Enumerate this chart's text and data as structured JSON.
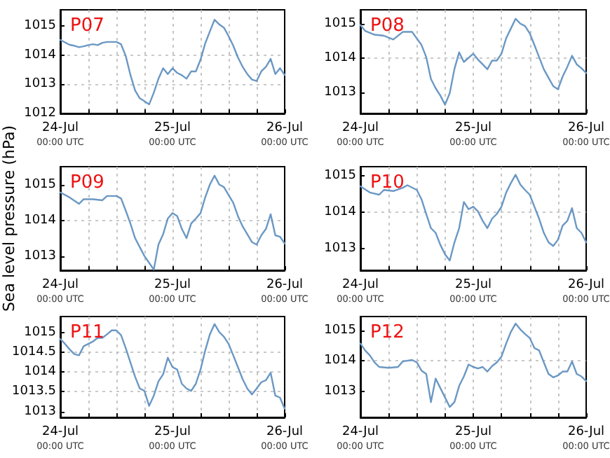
{
  "chart_data": [
    {
      "type": "line",
      "title": "P07",
      "xlim": [
        "--07-24T00:00",
        "--07-26T00:00"
      ],
      "xticks": [
        {
          "value": "--07-24T00:00",
          "label": "24-Jul\n00:00 UTC"
        },
        {
          "value": "--07-24T06:00",
          "label": null
        },
        {
          "value": "--07-24T12:00",
          "label": null
        },
        {
          "value": "--07-24T18:00",
          "label": null
        },
        {
          "value": "--07-25T00:00",
          "label": "25-Jul\n00:00 UTC"
        },
        {
          "value": "--07-25T06:00",
          "label": null
        },
        {
          "value": "--07-25T12:00",
          "label": null
        },
        {
          "value": "--07-25T18:00",
          "label": null
        },
        {
          "value": "--07-26T00:00",
          "label": "26-Jul\n00:00 UTC"
        }
      ],
      "ylim": [
        1012,
        1015.55
      ],
      "yticks": [
        1012,
        1013,
        1014,
        1015
      ],
      "grid": true,
      "marker": "none",
      "line_style": "solid",
      "series": [
        {
          "color": "#6b98c4",
          "x": [
            "--07-24T00:00",
            "--07-24T02:00",
            "--07-24T03:00",
            "--07-24T04:00",
            "--07-24T05:00",
            "--07-24T06:00",
            "--07-24T07:00",
            "--07-24T08:00",
            "--07-24T09:00",
            "--07-24T10:00",
            "--07-24T12:00",
            "--07-24T13:00",
            "--07-24T14:00",
            "--07-24T15:00",
            "--07-24T16:00",
            "--07-24T17:00",
            "--07-24T18:00",
            "--07-24T19:00",
            "--07-24T20:00",
            "--07-24T21:00",
            "--07-24T22:00",
            "--07-24T23:00",
            "--07-25T00:00",
            "--07-25T01:00",
            "--07-25T02:00",
            "--07-25T03:00",
            "--07-25T04:00",
            "--07-25T05:00",
            "--07-25T06:00",
            "--07-25T07:00",
            "--07-25T08:00",
            "--07-25T09:00",
            "--07-25T10:00",
            "--07-25T11:00",
            "--07-25T12:00",
            "--07-25T13:00",
            "--07-25T14:00",
            "--07-25T15:00",
            "--07-25T16:00",
            "--07-25T17:00",
            "--07-25T18:00",
            "--07-25T19:00",
            "--07-25T20:00",
            "--07-25T21:00",
            "--07-25T22:00",
            "--07-25T23:00",
            "--07-26T00:00"
          ],
          "values": [
            1014.52,
            1014.35,
            1014.32,
            1014.27,
            1014.3,
            1014.34,
            1014.37,
            1014.34,
            1014.42,
            1014.45,
            1014.45,
            1014.37,
            1013.97,
            1013.32,
            1012.79,
            1012.52,
            1012.42,
            1012.31,
            1012.71,
            1013.19,
            1013.55,
            1013.35,
            1013.55,
            1013.39,
            1013.31,
            1013.19,
            1013.44,
            1013.44,
            1013.84,
            1014.4,
            1014.81,
            1015.21,
            1015.05,
            1014.94,
            1014.65,
            1014.32,
            1013.92,
            1013.6,
            1013.35,
            1013.16,
            1013.11,
            1013.44,
            1013.6,
            1013.87,
            1013.35,
            1013.55,
            1013.32
          ]
        }
      ]
    },
    {
      "type": "line",
      "title": "P08",
      "xlim": [
        "--07-24T00:00",
        "--07-26T00:00"
      ],
      "xticks": [
        {
          "value": "--07-24T00:00",
          "label": "24-Jul\n00:00 UTC"
        },
        {
          "value": "--07-24T06:00",
          "label": null
        },
        {
          "value": "--07-24T12:00",
          "label": null
        },
        {
          "value": "--07-24T18:00",
          "label": null
        },
        {
          "value": "--07-25T00:00",
          "label": "25-Jul\n00:00 UTC"
        },
        {
          "value": "--07-25T06:00",
          "label": null
        },
        {
          "value": "--07-25T12:00",
          "label": null
        },
        {
          "value": "--07-25T18:00",
          "label": null
        },
        {
          "value": "--07-26T00:00",
          "label": "26-Jul\n00:00 UTC"
        }
      ],
      "ylim": [
        1012.4,
        1015.4
      ],
      "yticks": [
        1013,
        1014,
        1015
      ],
      "grid": true,
      "marker": "none",
      "line_style": "solid",
      "series": [
        {
          "color": "#6b98c4",
          "x": [
            "--07-24T00:00",
            "--07-24T01:00",
            "--07-24T03:00",
            "--07-24T05:00",
            "--07-24T07:00",
            "--07-24T09:00",
            "--07-24T11:00",
            "--07-24T13:00",
            "--07-24T14:00",
            "--07-24T15:00",
            "--07-24T16:00",
            "--07-24T17:00",
            "--07-24T18:00",
            "--07-24T19:00",
            "--07-24T20:00",
            "--07-24T21:00",
            "--07-24T22:00",
            "--07-25T00:00",
            "--07-25T01:00",
            "--07-25T02:00",
            "--07-25T03:00",
            "--07-25T04:00",
            "--07-25T05:00",
            "--07-25T06:00",
            "--07-25T07:00",
            "--07-25T08:00",
            "--07-25T09:00",
            "--07-25T10:00",
            "--07-25T11:00",
            "--07-25T12:00",
            "--07-25T13:00",
            "--07-25T14:00",
            "--07-25T15:00",
            "--07-25T16:00",
            "--07-25T17:00",
            "--07-25T18:00",
            "--07-25T19:00",
            "--07-25T20:00",
            "--07-25T21:00",
            "--07-25T22:00",
            "--07-25T23:00",
            "--07-26T00:00"
          ],
          "values": [
            1014.96,
            1014.79,
            1014.68,
            1014.65,
            1014.54,
            1014.76,
            1014.76,
            1014.38,
            1014.03,
            1013.4,
            1013.13,
            1012.92,
            1012.65,
            1012.99,
            1013.69,
            1014.17,
            1013.89,
            1014.13,
            1013.96,
            1013.82,
            1013.68,
            1013.93,
            1013.93,
            1014.13,
            1014.58,
            1014.86,
            1015.14,
            1015,
            1014.93,
            1014.72,
            1014.38,
            1014.03,
            1013.68,
            1013.43,
            1013.19,
            1013.1,
            1013.47,
            1013.75,
            1014.07,
            1013.82,
            1013.71,
            1013.57
          ]
        }
      ]
    },
    {
      "type": "line",
      "title": "P09",
      "ylabel": "Sea level pressure (hPa)",
      "xlim": [
        "--07-24T00:00",
        "--07-26T00:00"
      ],
      "xticks": [
        {
          "value": "--07-24T00:00",
          "label": "24-Jul\n00:00 UTC"
        },
        {
          "value": "--07-24T06:00",
          "label": null
        },
        {
          "value": "--07-24T12:00",
          "label": null
        },
        {
          "value": "--07-24T18:00",
          "label": null
        },
        {
          "value": "--07-25T00:00",
          "label": "25-Jul\n00:00 UTC"
        },
        {
          "value": "--07-25T06:00",
          "label": null
        },
        {
          "value": "--07-25T12:00",
          "label": null
        },
        {
          "value": "--07-25T18:00",
          "label": null
        },
        {
          "value": "--07-26T00:00",
          "label": "26-Jul\n00:00 UTC"
        }
      ],
      "ylim": [
        1012.6,
        1015.5
      ],
      "yticks": [
        1013,
        1014,
        1015
      ],
      "grid": true,
      "marker": "none",
      "line_style": "solid",
      "series": [
        {
          "color": "#6b98c4",
          "x": [
            "--07-24T00:00",
            "--07-24T02:00",
            "--07-24T04:00",
            "--07-24T05:00",
            "--07-24T07:00",
            "--07-24T09:00",
            "--07-24T10:00",
            "--07-24T12:00",
            "--07-24T13:00",
            "--07-24T14:00",
            "--07-24T15:00",
            "--07-24T16:00",
            "--07-24T17:00",
            "--07-24T18:00",
            "--07-24T19:00",
            "--07-24T20:00",
            "--07-24T21:00",
            "--07-24T22:00",
            "--07-24T23:00",
            "--07-25T00:00",
            "--07-25T01:00",
            "--07-25T02:00",
            "--07-25T03:00",
            "--07-25T04:00",
            "--07-25T05:00",
            "--07-25T06:00",
            "--07-25T07:00",
            "--07-25T08:00",
            "--07-25T09:00",
            "--07-25T10:00",
            "--07-25T11:00",
            "--07-25T12:00",
            "--07-25T13:00",
            "--07-25T14:00",
            "--07-25T15:00",
            "--07-25T16:00",
            "--07-25T17:00",
            "--07-25T18:00",
            "--07-25T19:00",
            "--07-25T20:00",
            "--07-25T21:00",
            "--07-25T22:00",
            "--07-25T23:00",
            "--07-26T00:00"
          ],
          "values": [
            1014.78,
            1014.64,
            1014.46,
            1014.59,
            1014.59,
            1014.56,
            1014.68,
            1014.68,
            1014.61,
            1014.27,
            1013.91,
            1013.5,
            1013.25,
            1013,
            1012.81,
            1012.62,
            1013.32,
            1013.61,
            1014.05,
            1014.2,
            1014.12,
            1013.76,
            1013.5,
            1013.91,
            1014.05,
            1014.2,
            1014.64,
            1015,
            1015.25,
            1015,
            1014.93,
            1014.71,
            1014.49,
            1014.12,
            1013.83,
            1013.61,
            1013.39,
            1013.32,
            1013.58,
            1013.76,
            1014.17,
            1013.58,
            1013.54,
            1013.35
          ]
        }
      ]
    },
    {
      "type": "line",
      "title": "P10",
      "xlim": [
        "--07-24T00:00",
        "--07-26T00:00"
      ],
      "xticks": [
        {
          "value": "--07-24T00:00",
          "label": "24-Jul\n00:00 UTC"
        },
        {
          "value": "--07-24T06:00",
          "label": null
        },
        {
          "value": "--07-24T12:00",
          "label": null
        },
        {
          "value": "--07-24T18:00",
          "label": null
        },
        {
          "value": "--07-25T00:00",
          "label": "25-Jul\n00:00 UTC"
        },
        {
          "value": "--07-25T06:00",
          "label": null
        },
        {
          "value": "--07-25T12:00",
          "label": null
        },
        {
          "value": "--07-25T18:00",
          "label": null
        },
        {
          "value": "--07-26T00:00",
          "label": "26-Jul\n00:00 UTC"
        }
      ],
      "ylim": [
        1012.4,
        1015.25
      ],
      "yticks": [
        1013,
        1014,
        1015
      ],
      "grid": true,
      "marker": "none",
      "line_style": "solid",
      "series": [
        {
          "color": "#6b98c4",
          "x": [
            "--07-24T00:00",
            "--07-24T02:00",
            "--07-24T04:00",
            "--07-24T05:00",
            "--07-24T07:00",
            "--07-24T09:00",
            "--07-24T10:00",
            "--07-24T12:00",
            "--07-24T13:00",
            "--07-24T14:00",
            "--07-24T15:00",
            "--07-24T16:00",
            "--07-24T17:00",
            "--07-24T18:00",
            "--07-24T19:00",
            "--07-24T20:00",
            "--07-24T21:00",
            "--07-24T22:00",
            "--07-24T23:00",
            "--07-25T00:00",
            "--07-25T01:00",
            "--07-25T02:00",
            "--07-25T03:00",
            "--07-25T04:00",
            "--07-25T05:00",
            "--07-25T06:00",
            "--07-25T07:00",
            "--07-25T08:00",
            "--07-25T09:00",
            "--07-25T10:00",
            "--07-25T11:00",
            "--07-25T12:00",
            "--07-25T13:00",
            "--07-25T14:00",
            "--07-25T15:00",
            "--07-25T16:00",
            "--07-25T17:00",
            "--07-25T18:00",
            "--07-25T19:00",
            "--07-25T20:00",
            "--07-25T21:00",
            "--07-25T22:00",
            "--07-25T23:00",
            "--07-26T00:00"
          ],
          "values": [
            1014.71,
            1014.54,
            1014.48,
            1014.61,
            1014.58,
            1014.67,
            1014.74,
            1014.61,
            1014.35,
            1013.95,
            1013.56,
            1013.43,
            1013.1,
            1012.84,
            1012.67,
            1013.17,
            1013.56,
            1014.28,
            1014.08,
            1014.15,
            1014.02,
            1013.76,
            1013.56,
            1013.82,
            1013.95,
            1014.15,
            1014.54,
            1014.8,
            1015.03,
            1014.76,
            1014.61,
            1014.48,
            1014.15,
            1013.82,
            1013.43,
            1013.17,
            1013.07,
            1013.24,
            1013.63,
            1013.76,
            1014.11,
            1013.56,
            1013.43,
            1013.17
          ]
        }
      ]
    },
    {
      "type": "line",
      "title": "P11",
      "xlim": [
        "--07-24T00:00",
        "--07-26T00:00"
      ],
      "xticks": [
        {
          "value": "--07-24T00:00",
          "label": "24-Jul\n00:00 UTC"
        },
        {
          "value": "--07-24T06:00",
          "label": null
        },
        {
          "value": "--07-24T12:00",
          "label": null
        },
        {
          "value": "--07-24T18:00",
          "label": null
        },
        {
          "value": "--07-25T00:00",
          "label": "25-Jul\n00:00 UTC"
        },
        {
          "value": "--07-25T06:00",
          "label": null
        },
        {
          "value": "--07-25T12:00",
          "label": null
        },
        {
          "value": "--07-25T18:00",
          "label": null
        },
        {
          "value": "--07-26T00:00",
          "label": "26-Jul\n00:00 UTC"
        }
      ],
      "ylim": [
        1012.85,
        1015.4
      ],
      "yticks": [
        1013,
        1013.5,
        1014,
        1014.5,
        1015
      ],
      "grid": true,
      "marker": "none",
      "line_style": "solid",
      "series": [
        {
          "color": "#6b98c4",
          "x": [
            "--07-24T00:00",
            "--07-24T01:00",
            "--07-24T02:00",
            "--07-24T03:00",
            "--07-24T04:00",
            "--07-24T05:00",
            "--07-24T07:00",
            "--07-24T08:00",
            "--07-24T09:00",
            "--07-24T10:00",
            "--07-24T11:00",
            "--07-24T12:00",
            "--07-24T13:00",
            "--07-24T14:00",
            "--07-24T15:00",
            "--07-24T16:00",
            "--07-24T17:00",
            "--07-24T18:00",
            "--07-24T19:00",
            "--07-24T20:00",
            "--07-24T21:00",
            "--07-24T22:00",
            "--07-24T23:00",
            "--07-25T00:00",
            "--07-25T01:00",
            "--07-25T02:00",
            "--07-25T03:00",
            "--07-25T04:00",
            "--07-25T05:00",
            "--07-25T06:00",
            "--07-25T07:00",
            "--07-25T08:00",
            "--07-25T09:00",
            "--07-25T10:00",
            "--07-25T11:00",
            "--07-25T12:00",
            "--07-25T13:00",
            "--07-25T14:00",
            "--07-25T15:00",
            "--07-25T16:00",
            "--07-25T17:00",
            "--07-25T18:00",
            "--07-25T19:00",
            "--07-25T20:00",
            "--07-25T21:00",
            "--07-25T22:00",
            "--07-25T23:00",
            "--07-26T00:00"
          ],
          "values": [
            1014.83,
            1014.71,
            1014.57,
            1014.45,
            1014.42,
            1014.65,
            1014.77,
            1014.86,
            1014.86,
            1014.95,
            1015.05,
            1015.05,
            1014.93,
            1014.6,
            1014.24,
            1013.88,
            1013.58,
            1013.52,
            1013.14,
            1013.4,
            1013.76,
            1013.94,
            1014.36,
            1014.12,
            1014.06,
            1013.7,
            1013.58,
            1013.52,
            1013.7,
            1014.06,
            1014.54,
            1014.95,
            1015.21,
            1015.01,
            1014.89,
            1014.71,
            1014.42,
            1014.12,
            1013.82,
            1013.58,
            1013.43,
            1013.58,
            1013.74,
            1013.79,
            1013.98,
            1013.4,
            1013.35,
            1013.07
          ]
        }
      ]
    },
    {
      "type": "line",
      "title": "P12",
      "xlim": [
        "--07-24T00:00",
        "--07-26T00:00"
      ],
      "xticks": [
        {
          "value": "--07-24T00:00",
          "label": "24-Jul\n00:00 UTC"
        },
        {
          "value": "--07-24T06:00",
          "label": null
        },
        {
          "value": "--07-24T12:00",
          "label": null
        },
        {
          "value": "--07-24T18:00",
          "label": null
        },
        {
          "value": "--07-25T00:00",
          "label": "25-Jul\n00:00 UTC"
        },
        {
          "value": "--07-25T06:00",
          "label": null
        },
        {
          "value": "--07-25T12:00",
          "label": null
        },
        {
          "value": "--07-25T18:00",
          "label": null
        },
        {
          "value": "--07-26T00:00",
          "label": "26-Jul\n00:00 UTC"
        }
      ],
      "ylim": [
        1012.15,
        1015.45
      ],
      "yticks": [
        1013,
        1014,
        1015
      ],
      "grid": true,
      "marker": "none",
      "line_style": "solid",
      "series": [
        {
          "color": "#6b98c4",
          "x": [
            "--07-24T00:00",
            "--07-24T01:00",
            "--07-24T02:00",
            "--07-24T03:00",
            "--07-24T04:00",
            "--07-24T06:00",
            "--07-24T08:00",
            "--07-24T09:00",
            "--07-24T11:00",
            "--07-24T12:00",
            "--07-24T13:00",
            "--07-24T14:00",
            "--07-24T15:00",
            "--07-24T16:00",
            "--07-24T17:00",
            "--07-24T18:00",
            "--07-24T19:00",
            "--07-24T20:00",
            "--07-24T21:00",
            "--07-24T22:00",
            "--07-24T23:00",
            "--07-25T00:00",
            "--07-25T01:00",
            "--07-25T02:00",
            "--07-25T03:00",
            "--07-25T04:00",
            "--07-25T05:00",
            "--07-25T06:00",
            "--07-25T07:00",
            "--07-25T08:00",
            "--07-25T09:00",
            "--07-25T10:00",
            "--07-25T11:00",
            "--07-25T12:00",
            "--07-25T13:00",
            "--07-25T14:00",
            "--07-25T15:00",
            "--07-25T16:00",
            "--07-25T17:00",
            "--07-25T18:00",
            "--07-25T19:00",
            "--07-25T20:00",
            "--07-25T21:00",
            "--07-25T22:00",
            "--07-25T23:00",
            "--07-26T00:00"
          ],
          "values": [
            1014.57,
            1014.34,
            1014.18,
            1013.95,
            1013.8,
            1013.77,
            1013.8,
            1013.98,
            1014.03,
            1013.95,
            1013.68,
            1013.57,
            1012.65,
            1013.42,
            1013.11,
            1012.8,
            1012.49,
            1012.65,
            1013.18,
            1013.49,
            1013.88,
            1013.8,
            1013.75,
            1013.8,
            1013.65,
            1013.83,
            1013.95,
            1014.14,
            1014.57,
            1014.95,
            1015.22,
            1015.03,
            1014.88,
            1014.75,
            1014.42,
            1014.34,
            1013.95,
            1013.57,
            1013.46,
            1013.52,
            1013.65,
            1013.65,
            1013.98,
            1013.57,
            1013.49,
            1013.34
          ]
        }
      ]
    }
  ]
}
